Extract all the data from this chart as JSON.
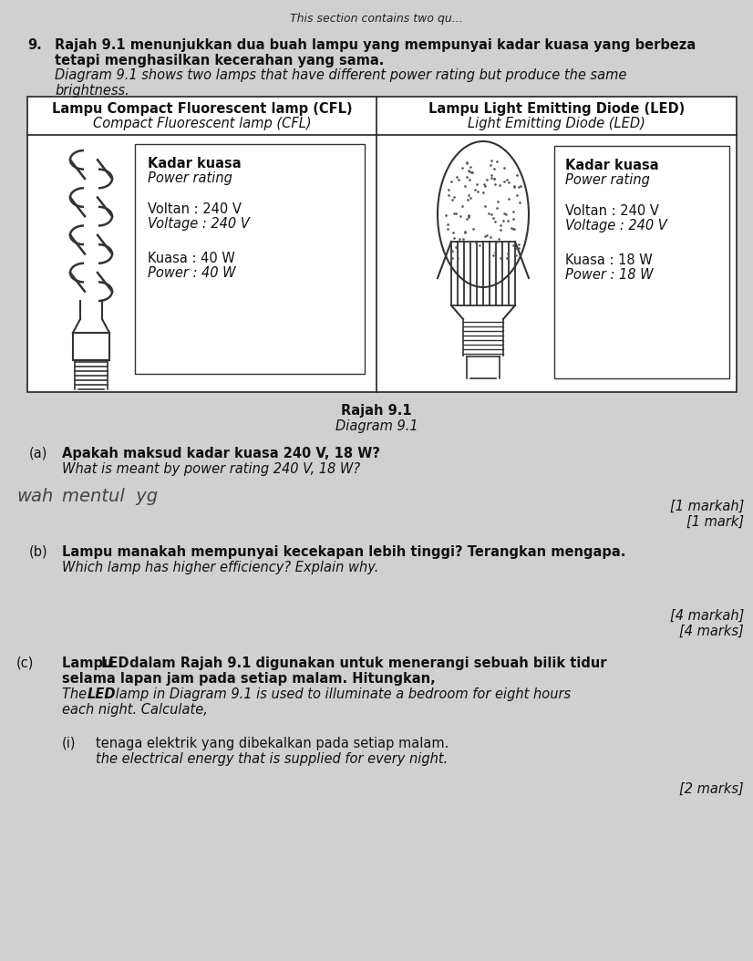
{
  "page_bg": "#d8d8d8",
  "header_text": "This section contains two qu...",
  "question_num": "9.",
  "q_ms1": "Rajah 9.1 menunjukkan dua buah lampu yang mempunyai kadar kuasa yang berbeza",
  "q_ms2": "tetapi menghasilkan kecerahan yang sama.",
  "q_en1": "Diagram 9.1 shows two lamps that have different power rating but produce the same",
  "q_en2": "brightness.",
  "cfl_header_ms": "Lampu Compact Fluorescent lamp (CFL)",
  "cfl_header_en": "Compact Fluorescent lamp (CFL)",
  "led_header_ms": "Lampu Light Emitting Diode (LED)",
  "led_header_en": "Light Emitting Diode (LED)",
  "cfl_rating_ms": "Kadar kuasa",
  "cfl_rating_en": "Power rating",
  "cfl_v_ms": "Voltan : 240 V",
  "cfl_v_en": "Voltage : 240 V",
  "cfl_p_ms": "Kuasa : 40 W",
  "cfl_p_en": "Power : 40 W",
  "led_rating_ms": "Kadar kuasa",
  "led_rating_en": "Power rating",
  "led_v_ms": "Voltan : 240 V",
  "led_v_en": "Voltage : 240 V",
  "led_p_ms": "Kuasa : 18 W",
  "led_p_en": "Power : 18 W",
  "fig_ms": "Rajah 9.1",
  "fig_en": "Diagram 9.1",
  "qa_label": "(a)",
  "qa_ms": "Apakah maksud kadar kuasa 240 V, 18 W?",
  "qa_en": "What is meant by power rating 240 V, 18 W?",
  "qa_answer_prefix": "ah mentul  yg",
  "qa_marks_ms": "[1 markah]",
  "qa_marks_en": "[1 mark]",
  "qb_label": "(b)",
  "qb_ms": "Lampu manakah mempunyai kecekapan lebih tinggi? Terangkan mengapa.",
  "qb_en": "Which lamp has higher efficiency? Explain why.",
  "qb_marks_ms": "[4 markah]",
  "qb_marks_en": "[4 marks]",
  "qc_label": "(c)",
  "qc_ms1a": "Lampu ",
  "qc_ms1b": "LED",
  "qc_ms1c": " dalam Rajah 9.1 digunakan untuk menerangi sebuah bilik tidur",
  "qc_ms2": "selama lapan jam pada setiap malam. Hitungkan,",
  "qc_en1a": "The ",
  "qc_en1b": "LED",
  "qc_en1c": " lamp in Diagram 9.1 is used to illuminate a bedroom for eight hours",
  "qc_en2": "each night. Calculate,",
  "qci_label": "(i)",
  "qci_ms": "tenaga elektrik yang dibekalkan pada setiap malam.",
  "qci_en": "the electrical energy that is supplied for every night.",
  "qci_marks": "[2 marks]"
}
